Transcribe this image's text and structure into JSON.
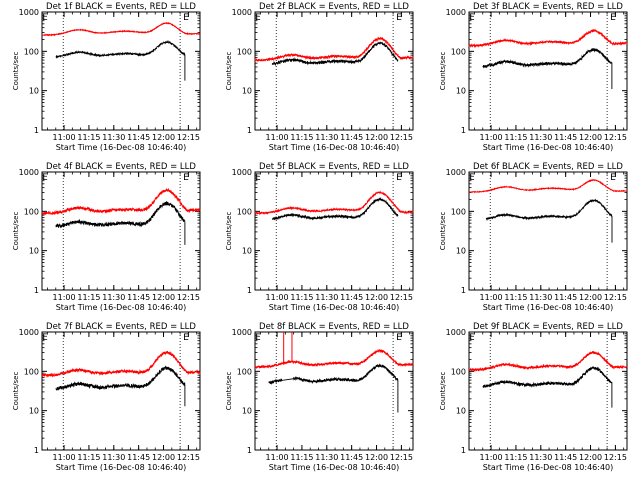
{
  "chart_data": {
    "type": "line",
    "layout": "3x3 grid",
    "shared": {
      "ylabel": "Counts/sec",
      "xlabel": "Start Time (16-Dec-08 10:46:40)",
      "x_tick_labels": [
        "11:00",
        "11:15",
        "11:30",
        "11:45",
        "12:00",
        "12:15"
      ],
      "x_ticks_min": [
        660,
        675,
        690,
        705,
        720,
        735
      ],
      "xlim": [
        646.7,
        742
      ],
      "y_tick_labels": [
        "1",
        "10",
        "100",
        "1000"
      ],
      "ylim": [
        1,
        1000
      ],
      "y_scale": "log",
      "marker_label": "E",
      "series_colors": {
        "events": "#000000",
        "lld": "#ff0000"
      }
    },
    "panels": [
      {
        "title": "Det 1f BLACK = Events, RED = LLD",
        "vlines_min": [
          659.5,
          730
        ],
        "events": {
          "start": 655,
          "end": 733,
          "lo": 70,
          "hi": 170,
          "dip": 18,
          "noise": 0.02
        },
        "lld": {
          "start": 646.7,
          "end": 742,
          "lo": 260,
          "hi": 520,
          "tail": 280,
          "noise": 0.01
        }
      },
      {
        "title": "Det 2f BLACK = Events, RED = LLD",
        "vlines_min": [
          659.5,
          730
        ],
        "events": {
          "start": 657,
          "end": 734,
          "lo": 45,
          "hi": 160,
          "dip": 17,
          "noise": 0.04
        },
        "lld": {
          "start": 646.7,
          "end": 742,
          "lo": 60,
          "hi": 210,
          "tail": 70,
          "noise": 0.03
        }
      },
      {
        "title": "Det 3f BLACK = Events, RED = LLD",
        "vlines_min": [
          659.5,
          730
        ],
        "events": {
          "start": 655,
          "end": 733,
          "lo": 40,
          "hi": 110,
          "dip": 11,
          "noise": 0.04
        },
        "lld": {
          "start": 646.7,
          "end": 742,
          "lo": 140,
          "hi": 330,
          "tail": 160,
          "noise": 0.03
        }
      },
      {
        "title": "Det 4f BLACK = Events, RED = LLD",
        "vlines_min": [
          659.5,
          730
        ],
        "events": {
          "start": 655,
          "end": 733,
          "lo": 40,
          "hi": 160,
          "dip": 14,
          "noise": 0.05
        },
        "lld": {
          "start": 646.7,
          "end": 742,
          "lo": 90,
          "hi": 340,
          "tail": 110,
          "noise": 0.04
        }
      },
      {
        "title": "Det 5f BLACK = Events, RED = LLD",
        "vlines_min": [
          659.5,
          730
        ],
        "events": {
          "start": 657,
          "end": 734,
          "lo": 60,
          "hi": 200,
          "dip": 16,
          "noise": 0.03
        },
        "lld": {
          "start": 646.7,
          "end": 742,
          "lo": 90,
          "hi": 300,
          "tail": 95,
          "noise": 0.02
        }
      },
      {
        "title": "Det 6f BLACK = Events, RED = LLD",
        "vlines_min": [
          659.5,
          730
        ],
        "events": {
          "start": 657,
          "end": 733,
          "lo": 60,
          "hi": 190,
          "dip": 16,
          "noise": 0.02
        },
        "lld": {
          "start": 646.7,
          "end": 742,
          "lo": 310,
          "hi": 620,
          "tail": 330,
          "noise": 0.01
        }
      },
      {
        "title": "Det 7f BLACK = Events, RED = LLD",
        "vlines_min": [
          659.5,
          730
        ],
        "events": {
          "start": 655,
          "end": 733,
          "lo": 35,
          "hi": 120,
          "dip": 13,
          "noise": 0.05
        },
        "lld": {
          "start": 646.7,
          "end": 742,
          "lo": 80,
          "hi": 300,
          "tail": 95,
          "noise": 0.04
        }
      },
      {
        "title": "Det 8f BLACK = Events, RED = LLD",
        "vlines_min": [
          659.5,
          730
        ],
        "events": {
          "start": 655,
          "end": 733,
          "lo": 50,
          "hi": 140,
          "dip": 9,
          "noise": 0.04,
          "gap": [
            663,
            670
          ]
        },
        "lld": {
          "start": 646.7,
          "end": 742,
          "lo": 130,
          "hi": 330,
          "tail": 150,
          "noise": 0.03,
          "spikes": [
            664,
            669
          ]
        }
      },
      {
        "title": "Det 9f BLACK = Events, RED = LLD",
        "vlines_min": [
          659.5,
          730
        ],
        "events": {
          "start": 655,
          "end": 733,
          "lo": 40,
          "hi": 120,
          "dip": 12,
          "noise": 0.04
        },
        "lld": {
          "start": 646.7,
          "end": 742,
          "lo": 110,
          "hi": 300,
          "tail": 130,
          "noise": 0.03
        }
      }
    ]
  }
}
